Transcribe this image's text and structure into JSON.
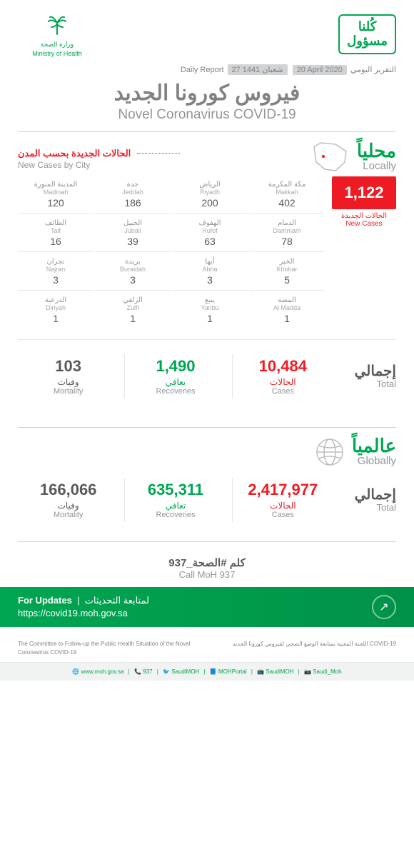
{
  "header": {
    "moh_ar": "وزارة الصحة",
    "moh_en": "Ministry of Health",
    "kulna_line1": "كُلنا",
    "kulna_line2": "مسؤول"
  },
  "dates": {
    "label_ar": "التقرير اليومي",
    "label_en": "Daily Report",
    "hijri": "27 شعبان 1441",
    "greg": "20 April 2020"
  },
  "title": {
    "ar": "فيروس كورونا الجديد",
    "en": "Novel Coronavirus COVID-19"
  },
  "locally": {
    "ar": "محلياً",
    "en": "Locally",
    "new_cases_ar": "الحالات الجديدة بحسب المدن",
    "new_cases_en": "New Cases by City",
    "big_number": "1,122",
    "big_sub_ar": "الحالات الجديدة",
    "big_sub_en": "New Cases"
  },
  "cities": [
    {
      "ar": "مكة المكرمة",
      "en": "Makkah",
      "val": "402"
    },
    {
      "ar": "الرياض",
      "en": "Riyadh",
      "val": "200"
    },
    {
      "ar": "جدة",
      "en": "Jeddah",
      "val": "186"
    },
    {
      "ar": "المدينة المنورة",
      "en": "Madinah",
      "val": "120"
    },
    {
      "ar": "الدمام",
      "en": "Dammam",
      "val": "78"
    },
    {
      "ar": "الهفوف",
      "en": "Hufof",
      "val": "63"
    },
    {
      "ar": "الجبيل",
      "en": "Jubail",
      "val": "39"
    },
    {
      "ar": "الطائف",
      "en": "Taif",
      "val": "16"
    },
    {
      "ar": "الخبر",
      "en": "Khobar",
      "val": "5"
    },
    {
      "ar": "أبها",
      "en": "Abha",
      "val": "3"
    },
    {
      "ar": "بريدة",
      "en": "Buraidah",
      "val": "3"
    },
    {
      "ar": "نجران",
      "en": "Najran",
      "val": "3"
    },
    {
      "ar": "المضة",
      "en": "Al Madda",
      "val": "1"
    },
    {
      "ar": "ينبع",
      "en": "Yanbu",
      "val": "1"
    },
    {
      "ar": "الزلفي",
      "en": "Zulfi",
      "val": "1"
    },
    {
      "ar": "الدرعية",
      "en": "Diriyah",
      "val": "1"
    }
  ],
  "total_label": {
    "ar": "إجمالي",
    "en": "Total"
  },
  "local_totals": {
    "cases": {
      "val": "10,484",
      "ar": "الحالات",
      "en": "Cases",
      "color": "#ed1c24"
    },
    "recoveries": {
      "val": "1,490",
      "ar": "تعافي",
      "en": "Recoveries",
      "color": "#00a651"
    },
    "mortality": {
      "val": "103",
      "ar": "وفيات",
      "en": "Mortality",
      "color": "#231f20"
    }
  },
  "globally": {
    "ar": "عالمياً",
    "en": "Globally"
  },
  "global_totals": {
    "cases": {
      "val": "2,417,977",
      "ar": "الحالات",
      "en": "Cases",
      "color": "#ed1c24"
    },
    "recoveries": {
      "val": "635,311",
      "ar": "تعافي",
      "en": "Recoveries",
      "color": "#00a651"
    },
    "mortality": {
      "val": "166,066",
      "ar": "وفيات",
      "en": "Mortality",
      "color": "#231f20"
    }
  },
  "call": {
    "ar": "كلم #الصحة_937",
    "en": "Call MoH 937"
  },
  "updates": {
    "ar": "لمتابعة التحديثات",
    "en": "For Updates",
    "url": "https://covid19.moh.gov.sa"
  },
  "committee": {
    "en": "The Committee to Follow-up the Public Health Situation of the Novel Coronavirus COVID-19",
    "ar": "اللجنة المعنية بمتابعة الوضع الصحي لفيروس كورونا الجديد COVID-19"
  },
  "footer_links": [
    "www.moh.gov.sa",
    "937",
    "SaudiMOH",
    "MOHPortal",
    "SaudiMOH",
    "Saudi_Moh"
  ]
}
